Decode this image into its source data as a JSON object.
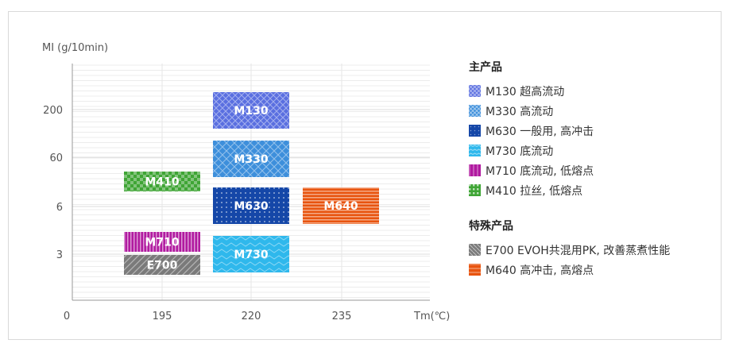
{
  "chart_data": {
    "type": "range-box",
    "ylabel": "MI (g/10min)",
    "xlabel": "Tm(℃)",
    "x_ticks": [
      "0",
      "195",
      "220",
      "235"
    ],
    "y_ticks": [
      "200",
      "60",
      "6",
      "3"
    ],
    "grid": true,
    "legend_position": "right",
    "boxes": [
      {
        "name": "M130",
        "x_range": [
          "220",
          "220"
        ],
        "y_range": [
          "200",
          "200"
        ],
        "color": "#5a6fe0",
        "pattern": "crosshatch"
      },
      {
        "name": "M330",
        "x_range": [
          "220",
          "220"
        ],
        "y_range": [
          "60",
          "60"
        ],
        "color": "#3d8fdb",
        "pattern": "diamond"
      },
      {
        "name": "M630",
        "x_range": [
          "220",
          "220"
        ],
        "y_range": [
          "6",
          "6"
        ],
        "color": "#1547a8",
        "pattern": "dots"
      },
      {
        "name": "M730",
        "x_range": [
          "220",
          "220"
        ],
        "y_range": [
          "3",
          "3"
        ],
        "color": "#2fb8ec",
        "pattern": "wave"
      },
      {
        "name": "M410",
        "x_range": [
          "195",
          "195"
        ],
        "y_range": [
          "60",
          "6"
        ],
        "color": "#3fa535",
        "pattern": "checker"
      },
      {
        "name": "M710",
        "x_range": [
          "195",
          "195"
        ],
        "y_range": [
          "3",
          "3"
        ],
        "color": "#b11aa0",
        "pattern": "vstripes"
      },
      {
        "name": "E700",
        "x_range": [
          "195",
          "195"
        ],
        "y_range": [
          "3",
          "3"
        ],
        "color": "#7a7a7a",
        "pattern": "diagonal"
      },
      {
        "name": "M640",
        "x_range": [
          "235",
          "235"
        ],
        "y_range": [
          "6",
          "6"
        ],
        "color": "#e8540f",
        "pattern": "hstripes"
      }
    ]
  },
  "legend": {
    "groups": [
      {
        "title": "主产品",
        "items": [
          {
            "label": "M130 超高流动",
            "color": "#5a6fe0",
            "pattern": "crosshatch"
          },
          {
            "label": "M330 高流动",
            "color": "#3d8fdb",
            "pattern": "diamond"
          },
          {
            "label": "M630 一般用, 高冲击",
            "color": "#1547a8",
            "pattern": "dots"
          },
          {
            "label": "M730 底流动",
            "color": "#2fb8ec",
            "pattern": "wave"
          },
          {
            "label": "M710 底流动, 低熔点",
            "color": "#b11aa0",
            "pattern": "vstripes"
          },
          {
            "label": "M410 拉丝, 低熔点",
            "color": "#3fa535",
            "pattern": "checker"
          }
        ]
      },
      {
        "title": "特殊产品",
        "items": [
          {
            "label": "E700 EVOH共混用PK, 改善蒸煮性能",
            "color": "#7a7a7a",
            "pattern": "diagonal"
          },
          {
            "label": "M640 高冲击, 高熔点",
            "color": "#e8540f",
            "pattern": "hstripes"
          }
        ]
      }
    ]
  }
}
